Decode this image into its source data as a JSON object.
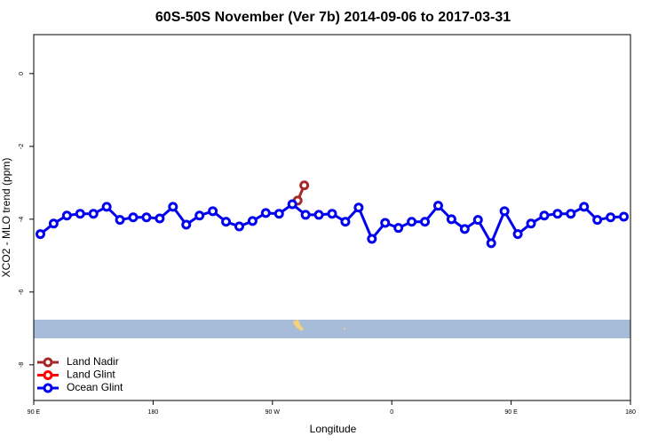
{
  "chart_data": {
    "type": "line",
    "title": "60S-50S November (Ver 7b)   2014-09-06 to 2017-03-31",
    "x_label": "Longitude",
    "y_label": "XCO2 - MLO trend (ppm)",
    "xlim": [
      90,
      540
    ],
    "ylim": [
      -8.98,
      1.07
    ],
    "xticks": [
      {
        "value": 90,
        "label": "90 E"
      },
      180,
      {
        "value": 270,
        "label": "90 W"
      },
      {
        "value": 360,
        "label": "0"
      },
      {
        "value": 450,
        "label": "90 E"
      },
      {
        "value": 540,
        "label": "180"
      }
    ],
    "yticks": [
      0,
      -2,
      -4,
      -6,
      -8
    ],
    "legend": "bottom-left",
    "series": [
      {
        "name": "Land Nadir",
        "color": "#a52a2a",
        "x": [
          289,
          294
        ],
        "values": [
          -3.49,
          -3.07
        ]
      },
      {
        "name": "Land Glint",
        "color": "#ff0000",
        "x": [],
        "values": []
      },
      {
        "name": "Ocean Glint",
        "color": "#0000ee",
        "x": [
          95,
          105,
          115,
          125,
          135,
          145,
          155,
          165,
          175,
          185,
          195,
          205,
          215,
          225,
          235,
          245,
          255,
          265,
          275,
          285,
          295,
          305,
          315,
          325,
          335,
          345,
          355,
          365,
          375,
          385,
          395,
          405,
          415,
          425,
          435,
          445,
          455,
          465,
          475,
          485,
          495,
          505,
          515,
          525,
          535
        ],
        "values": [
          -4.41,
          -4.12,
          -3.9,
          -3.85,
          -3.85,
          -3.66,
          -4.02,
          -3.95,
          -3.95,
          -3.98,
          -3.66,
          -4.15,
          -3.9,
          -3.78,
          -4.07,
          -4.2,
          -4.05,
          -3.83,
          -3.85,
          -3.59,
          -3.88,
          -3.88,
          -3.85,
          -4.07,
          -3.68,
          -4.54,
          -4.1,
          -4.24,
          -4.07,
          -4.07,
          -3.63,
          -4.0,
          -4.27,
          -4.02,
          -4.66,
          -3.78,
          -4.41,
          -4.12,
          -3.9,
          -3.85,
          -3.85,
          -3.66,
          -4.02,
          -3.95,
          -3.93
        ]
      }
    ]
  }
}
